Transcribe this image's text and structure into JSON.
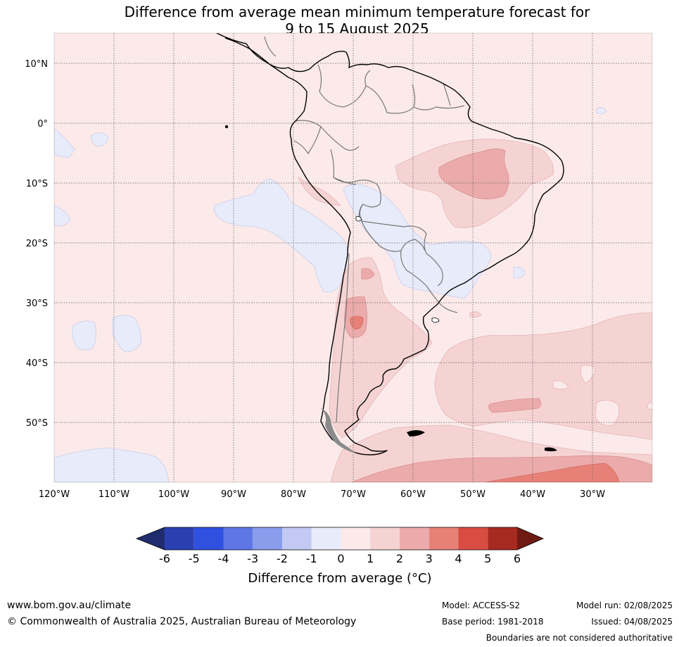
{
  "title": {
    "line1": "Difference from average mean minimum temperature forecast for",
    "line2": "9 to 15 August 2025"
  },
  "map": {
    "region": "South America",
    "projection": "equirectangular",
    "lon_range": [
      -120,
      -20
    ],
    "lat_range": [
      -60,
      15
    ],
    "lon_labels": [
      "120°W",
      "110°W",
      "100°W",
      "90°W",
      "80°W",
      "70°W",
      "60°W",
      "50°W",
      "40°W",
      "30°W"
    ],
    "lat_labels": [
      "10°N",
      "0°",
      "10°S",
      "20°S",
      "30°S",
      "40°S",
      "50°S"
    ],
    "gridlines": "dotted"
  },
  "colorbar": {
    "ticks": [
      "-6",
      "-5",
      "-4",
      "-3",
      "-2",
      "-1",
      "0",
      "1",
      "2",
      "3",
      "4",
      "5",
      "6"
    ],
    "colors": [
      "#2a3fb0",
      "#3050e0",
      "#5e76e6",
      "#8a9cec",
      "#c2c9f2",
      "#e8ebfa",
      "#fceaea",
      "#f5d3d3",
      "#ecabab",
      "#e78178",
      "#d94c42",
      "#a8291f"
    ],
    "extend_low_color": "#1f2d6e",
    "extend_high_color": "#6f1b14",
    "label": "Difference from average (°C)"
  },
  "footer": {
    "website": "www.bom.gov.au/climate",
    "copyright": "© Commonwealth of Australia 2025, Australian Bureau of Meteorology",
    "model": "Model: ACCESS-S2",
    "base_period": "Base period: 1981-2018",
    "model_run": "Model run: 02/08/2025",
    "issued": "Issued: 04/08/2025",
    "disclaimer": "Boundaries are not considered authoritative"
  }
}
